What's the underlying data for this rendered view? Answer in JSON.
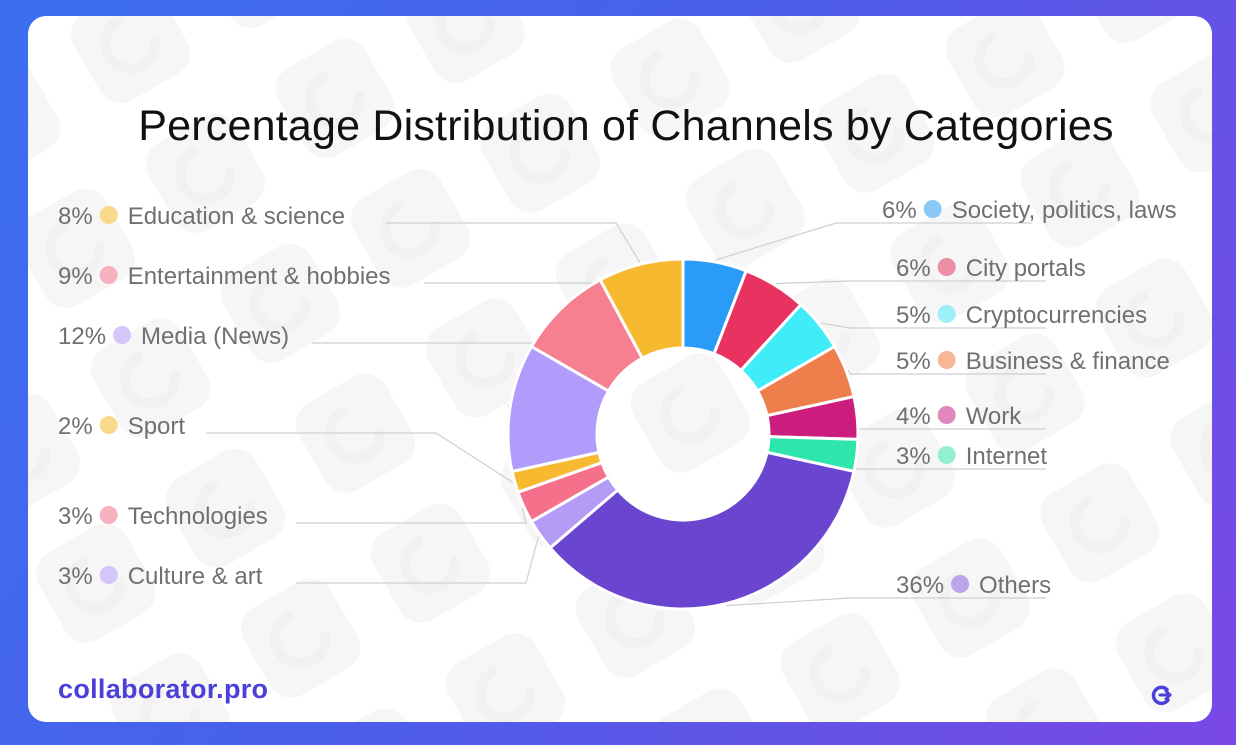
{
  "chart_data": {
    "type": "pie",
    "style": "donut",
    "title": "Percentage Distribution of Channels by Categories",
    "slices": [
      {
        "label": "Society, politics, laws",
        "value": 6,
        "value_label": "6%",
        "color": "#2a9bf6"
      },
      {
        "label": "City portals",
        "value": 6,
        "value_label": "6%",
        "color": "#e8325f"
      },
      {
        "label": "Cryptocurrencies",
        "value": 5,
        "value_label": "5%",
        "color": "#40ecf7"
      },
      {
        "label": "Business & finance",
        "value": 5,
        "value_label": "5%",
        "color": "#ef7e4d"
      },
      {
        "label": "Work",
        "value": 4,
        "value_label": "4%",
        "color": "#cb1d7e"
      },
      {
        "label": "Internet",
        "value": 3,
        "value_label": "3%",
        "color": "#2ee6ab"
      },
      {
        "label": "Others",
        "value": 36,
        "value_label": "36%",
        "color": "#6a45cf"
      },
      {
        "label": "Culture & art",
        "value": 3,
        "value_label": "3%",
        "color": "#b49cf6"
      },
      {
        "label": "Technologies",
        "value": 3,
        "value_label": "3%",
        "color": "#f4708b"
      },
      {
        "label": "Sport",
        "value": 2,
        "value_label": "2%",
        "color": "#f6b92f"
      },
      {
        "label": "Media (News)",
        "value": 12,
        "value_label": "12%",
        "color": "#b29cfb"
      },
      {
        "label": "Entertainment & hobbies",
        "value": 9,
        "value_label": "9%",
        "color": "#f6808f"
      },
      {
        "label": "Education & science",
        "value": 8,
        "value_label": "8%",
        "color": "#f6b92f"
      }
    ],
    "legend_placement": "around chart, left and right columns"
  },
  "footer": {
    "brand": "collaborator.pro"
  },
  "icons": {
    "footer_logo": "collaborator-logo-icon",
    "watermark": "collaborator-watermark"
  }
}
